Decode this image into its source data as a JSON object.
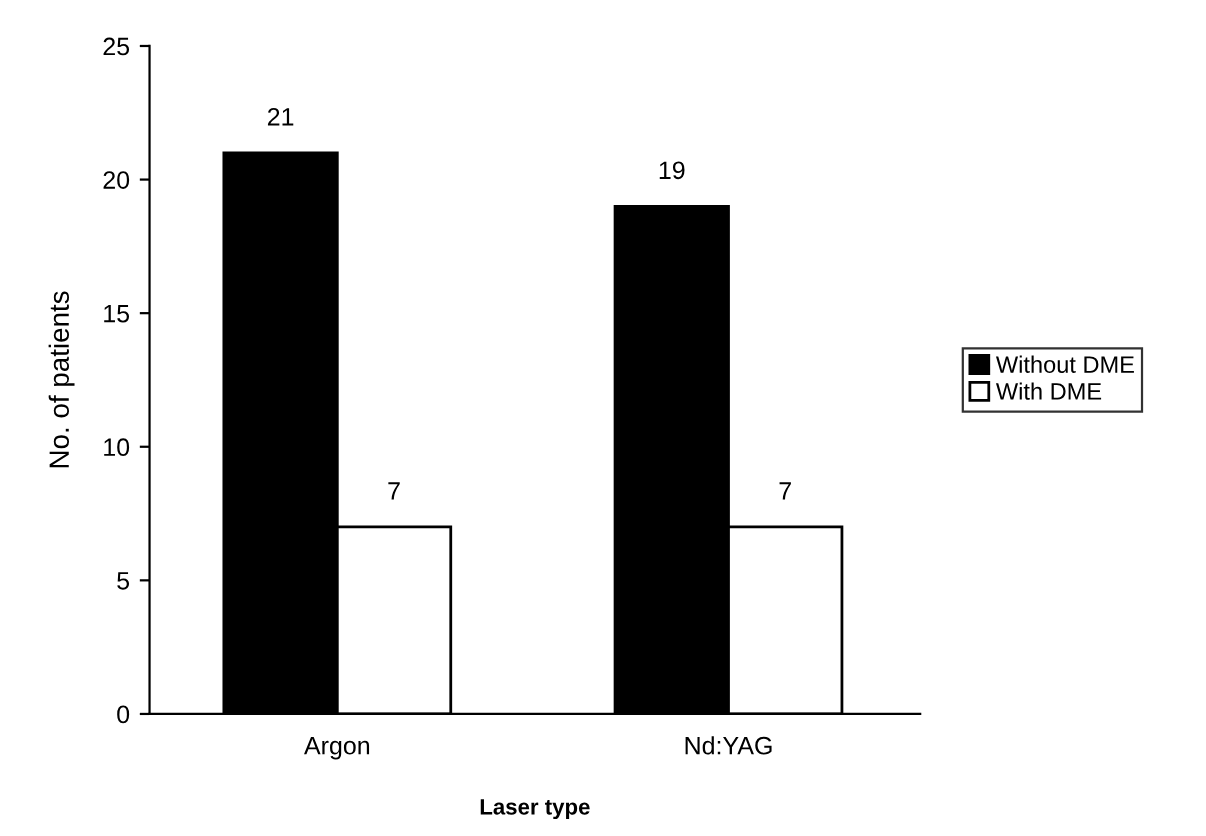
{
  "chart_data": {
    "type": "bar",
    "xlabel": "Laser type",
    "ylabel": "No. of patients",
    "categories": [
      "Argon",
      "Nd:YAG"
    ],
    "series": [
      {
        "name": "Without DME",
        "color": "#000000",
        "values": [
          21,
          19
        ]
      },
      {
        "name": "With DME",
        "color": "#ffffff",
        "values": [
          7,
          7
        ]
      }
    ],
    "ylim": [
      0,
      25
    ],
    "yticks": [
      0,
      5,
      10,
      15,
      20,
      25
    ],
    "data_labels": true,
    "legend": "right",
    "grid": false
  }
}
